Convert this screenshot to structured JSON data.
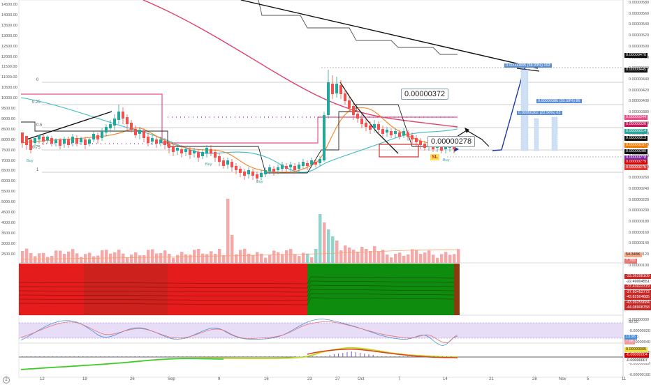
{
  "chart_data": [
    {
      "type": "candlestick",
      "pane": "price",
      "left_axis_ticks": [
        "14500.00",
        "14000.00",
        "13500.00",
        "13000.00",
        "12500.00",
        "12000.00",
        "11500.00",
        "11000.00",
        "10500.00",
        "10000.00",
        "9500.00",
        "9000.00",
        "8500.00",
        "8000.00",
        "7500.00",
        "7000.00",
        "6500.00",
        "6000.00",
        "5500.00",
        "5000.00",
        "4500.00",
        "4000.00",
        "3500.00",
        "3000.00",
        "2500.00"
      ],
      "right_axis_ticks": [
        "0.00000580",
        "0.00000560",
        "0.00000540",
        "0.00000520",
        "0.00000500",
        "0.00000480",
        "0.00000460",
        "0.00000440",
        "0.00000420",
        "0.00000400",
        "0.00000380",
        "0.00000360",
        "0.00000340",
        "0.00000320",
        "0.00000300",
        "0.00000280",
        "0.00000260",
        "0.00000240",
        "0.00000220",
        "0.00000200",
        "0.00000180",
        "0.00000160",
        "0.00000140",
        "0.00000120",
        "0.00000100",
        "0.00000080",
        "0.00000060",
        "0.00000040",
        "0.00000020",
        "0.00000000",
        "-0.00000020",
        "-0.00000040",
        "-0.00000060",
        "-0.00000080",
        "-0.00000100"
      ],
      "x_ticks": [
        "12",
        "19",
        "26",
        "Sep",
        "9",
        "16",
        "23",
        "27",
        "Oct",
        "7",
        "14",
        "21",
        "28",
        "Nov",
        "5",
        "11"
      ],
      "fib_levels": [
        "0",
        "0.25",
        "0.5",
        "0.75",
        "1"
      ],
      "annotations": {
        "price_box_1": "0.00000372",
        "price_box_2": "0.00000278",
        "target_main": "0.00000465 (38.93%) 163",
        "target_2": "0.00000386 (30.59%) 86",
        "target_3": "0.00000362 (22.56%) 63",
        "signal_sl": "SL",
        "buy_label": "Buy"
      },
      "right_price_tags": [
        {
          "text": "0.00000470",
          "bg": "#111111",
          "fg": "#ffffff"
        },
        {
          "text": "0.00000445",
          "bg": "#111111",
          "fg": "#ffffff"
        },
        {
          "text": "0.00000344",
          "bg": "#e8508a",
          "fg": "#ffffff"
        },
        {
          "text": "0.00000326",
          "bg": "#c2185b",
          "fg": "#ffffff"
        },
        {
          "text": "0.00000314",
          "bg": "#26a69a",
          "fg": "#ffffff"
        },
        {
          "text": "0.00000313",
          "bg": "#111111",
          "fg": "#ffffff"
        },
        {
          "text": "0.00000297",
          "bg": "#f57c00",
          "fg": "#ffffff"
        },
        {
          "text": "0.00000280",
          "bg": "#111111",
          "fg": "#ffffff"
        },
        {
          "text": "0.00000278",
          "bg": "#7b1fa2",
          "fg": "#ffffff"
        },
        {
          "text": "0.00000279",
          "bg": "#d50000",
          "fg": "#ffffff"
        },
        {
          "text": "0.00000276",
          "bg": "#e53935",
          "fg": "#ffffff"
        }
      ],
      "colors": {
        "up": "#26a69a",
        "down": "#ef5350",
        "ma_red": "#e0406a",
        "ma_orange": "#f5821f",
        "ma_teal": "#3cb9c8",
        "trend_black": "#111111",
        "target_blue": "#1e3aa0"
      }
    },
    {
      "type": "bar",
      "pane": "volume",
      "tags": [
        {
          "text": "54.348K",
          "bg": "#f4a582",
          "fg": "#222"
        },
        {
          "text": "7.788",
          "bg": "#e57373",
          "fg": "#fff"
        }
      ],
      "colors": {
        "up": "#80cbc4",
        "down": "#ef9a9a"
      }
    },
    {
      "type": "heatmap",
      "pane": "indicator",
      "tags": [
        "-33.36298109",
        "-22.49004551",
        "-37.43022379",
        "-37.93452772",
        "-43.82504685",
        "-43.99259684",
        "-44.08908758"
      ],
      "colors": {
        "bear": "#e51c1c",
        "bull": "#0e8c0e"
      }
    },
    {
      "type": "line",
      "pane": "stochastic",
      "right_ticks": [
        "80.00",
        "20.00"
      ],
      "tags": [
        "13.96",
        "7.98"
      ],
      "colors": {
        "k": "#4a90d9",
        "d": "#e57373",
        "band": "#e1d5f5"
      }
    },
    {
      "type": "line",
      "pane": "momentum",
      "tags": [
        {
          "text": "0.00000005",
          "bg": "#f3dd3c",
          "fg": "#222"
        },
        {
          "text": "-0.00000004",
          "bg": "#d50000",
          "fg": "#fff"
        },
        {
          "text": "-0.00000007",
          "bg": "#ffffff",
          "fg": "#222"
        }
      ],
      "colors": {
        "up": "#2ecc40",
        "down": "#e0401a"
      }
    }
  ],
  "ui": {
    "corner_button": "2"
  }
}
